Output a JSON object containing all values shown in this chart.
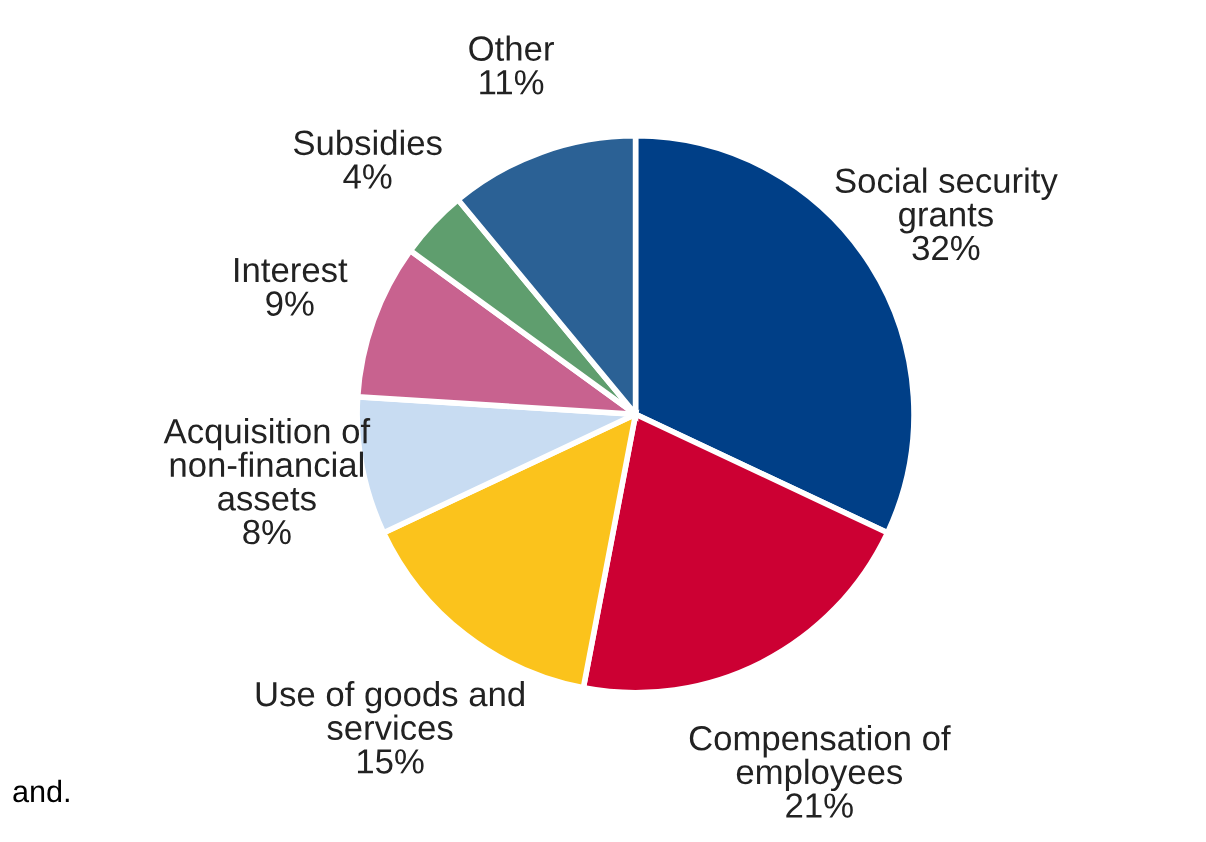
{
  "chart_data": {
    "type": "pie",
    "categories": [
      "Social security\ngrants",
      "Compensation of\nemployees",
      "Use of goods and\nservices",
      "Acquisition of\nnon-financial\nassets",
      "Interest",
      "Subsidies",
      "Other"
    ],
    "values": [
      32,
      21,
      15,
      8,
      9,
      4,
      11
    ],
    "value_labels": [
      "32%",
      "21%",
      "15%",
      "8%",
      "9%",
      "4%",
      "11%"
    ],
    "colors": [
      "#003f87",
      "#cc0033",
      "#fbc31c",
      "#c8dcf2",
      "#c8628f",
      "#5f9e6e",
      "#2b6195"
    ],
    "annotations": [
      "and."
    ]
  }
}
